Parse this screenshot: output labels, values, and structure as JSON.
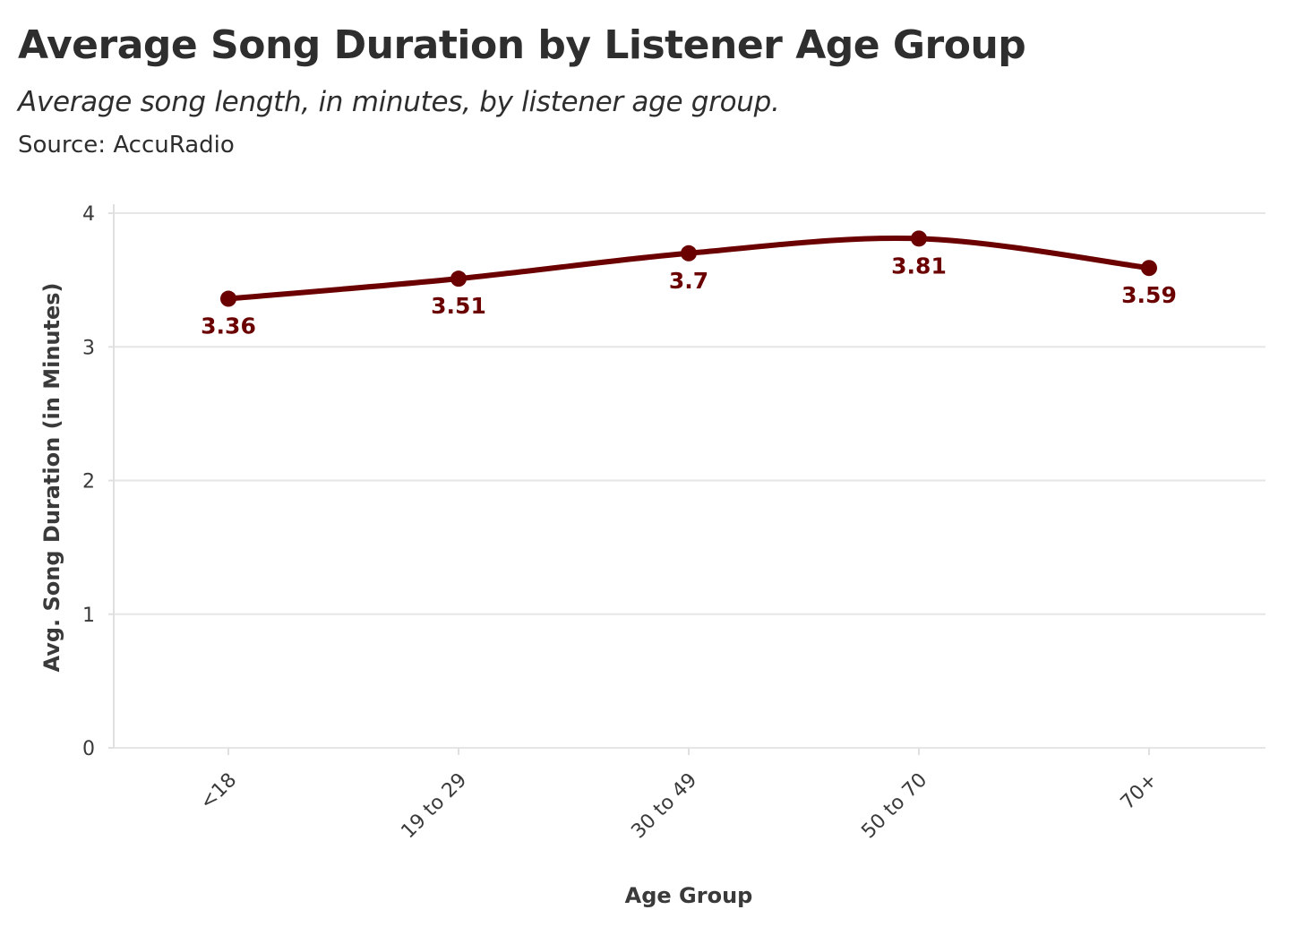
{
  "header": {
    "title": "Average Song Duration by Listener Age Group",
    "subtitle": "Average song length, in minutes, by listener age group.",
    "source": "Source: AccuRadio"
  },
  "chart_data": {
    "type": "line",
    "title": "Average Song Duration by Listener Age Group",
    "subtitle": "Average song length, in minutes, by listener age group.",
    "source": "Source: AccuRadio",
    "xlabel": "Age Group",
    "ylabel": "Avg. Song Duration (in Minutes)",
    "categories": [
      "<18",
      "19 to 29",
      "30 to 49",
      "50 to 70",
      "70+"
    ],
    "series": [
      {
        "values": [
          3.36,
          3.51,
          3.7,
          3.81,
          3.59
        ]
      }
    ],
    "data_labels": [
      "3.36",
      "3.51",
      "3.7",
      "3.81",
      "3.59"
    ],
    "ylim": [
      0,
      4
    ],
    "yticks": [
      0,
      1,
      2,
      3,
      4
    ],
    "ytick_labels": [
      "0",
      "1",
      "2",
      "3",
      "4"
    ],
    "grid": "horizontal",
    "legend": "none",
    "line_shape": "smooth",
    "line_color": "#6b0000"
  }
}
